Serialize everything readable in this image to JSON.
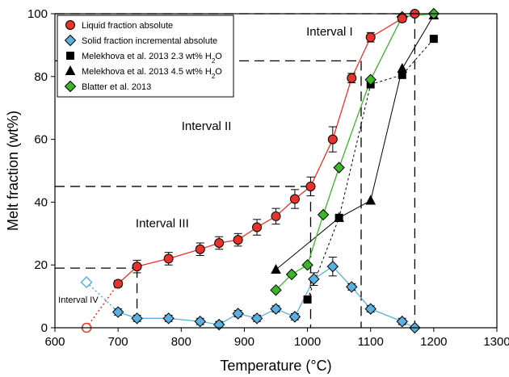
{
  "chart_data": {
    "type": "scatter",
    "xlabel": "Temperature (°C)",
    "ylabel": "Melt fraction (wt%)",
    "xlim": [
      600,
      1300
    ],
    "ylim": [
      0,
      100
    ],
    "xticks": [
      600,
      700,
      800,
      900,
      1000,
      1100,
      1200,
      1300
    ],
    "yticks": [
      0,
      20,
      40,
      60,
      80,
      100
    ],
    "grid": false,
    "legend_position": "top-left",
    "colors": {
      "liquid": "#e8332a",
      "solid": "#5ab0e0",
      "blatter": "#3cb528",
      "black": "#000000"
    },
    "series": [
      {
        "name": "Liquid fraction absolute",
        "marker": "circle",
        "x": [
          700,
          730,
          780,
          830,
          860,
          890,
          920,
          950,
          980,
          1005,
          1040,
          1070,
          1100,
          1150,
          1170
        ],
        "y": [
          14,
          19.5,
          22,
          25,
          27,
          28,
          32,
          35.5,
          41,
          45,
          60,
          79.5,
          92.5,
          98.5,
          100
        ],
        "err": [
          1,
          2,
          2,
          2,
          2,
          2,
          2.5,
          2.5,
          3,
          3,
          4,
          1.5,
          1.5,
          1,
          0
        ]
      },
      {
        "name": "Solid fraction incremental absolute",
        "marker": "diamond",
        "x": [
          700,
          730,
          780,
          830,
          860,
          890,
          920,
          950,
          980,
          1010,
          1040,
          1070,
          1100,
          1150,
          1170
        ],
        "y": [
          5,
          3,
          3,
          2,
          1,
          4.5,
          3,
          6,
          3.5,
          15.5,
          19.5,
          13,
          6,
          2,
          0
        ],
        "err": [
          1,
          1,
          1,
          1,
          1,
          1,
          1,
          1,
          1,
          2,
          3,
          1,
          1,
          1,
          0
        ]
      },
      {
        "name": "Melekhova et al. 2013 2.3 wt% H2O",
        "marker": "square",
        "x": [
          1000,
          1050,
          1100,
          1150,
          1200
        ],
        "y": [
          9,
          35,
          77.5,
          80.5,
          92
        ]
      },
      {
        "name": "Melekhova et al. 2013 4.5 wt% H2O",
        "marker": "triangle",
        "x": [
          950,
          1050,
          1100,
          1150,
          1200
        ],
        "y": [
          18.5,
          35,
          40.5,
          82.5,
          99.5
        ]
      },
      {
        "name": "Blatter et al. 2013",
        "marker": "diamond",
        "x": [
          950,
          975,
          1000,
          1025,
          1050,
          1100,
          1150,
          1200
        ],
        "y": [
          12,
          17,
          20,
          36,
          51,
          79,
          99,
          100
        ]
      }
    ],
    "projected_points": [
      {
        "series": "Liquid fraction absolute",
        "x": 650,
        "y": 0
      },
      {
        "series": "Solid fraction incremental absolute",
        "x": 650,
        "y": 14.5
      }
    ],
    "annotations": [
      {
        "text": "Interval I",
        "x": 1035,
        "y": 93
      },
      {
        "text": "Interval II",
        "x": 840,
        "y": 63
      },
      {
        "text": "Interval III",
        "x": 770,
        "y": 32
      },
      {
        "text": "Interval IV",
        "x": 637,
        "y": 8
      }
    ],
    "interval_lines": [
      {
        "temperature": 730,
        "melt": 19
      },
      {
        "temperature": 1005,
        "melt": 45
      },
      {
        "temperature": 1085,
        "melt": 85
      },
      {
        "temperature": 1170,
        "melt": 100
      }
    ]
  }
}
